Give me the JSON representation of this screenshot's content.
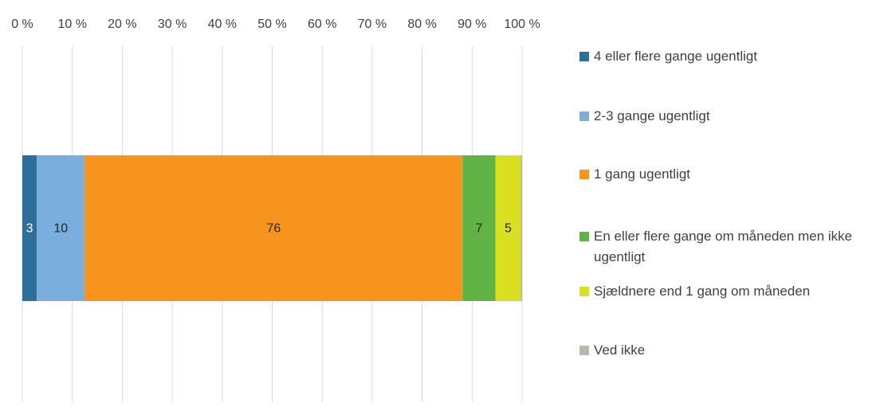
{
  "chart_data": {
    "type": "stacked-bar-horizontal",
    "categories": [
      null
    ],
    "series": [
      {
        "name": "4 eller flere gange ugentligt",
        "color": "#2e6f99",
        "values": [
          2.9
        ],
        "value_labels": [
          "3"
        ]
      },
      {
        "name": "2-3 gange ugentligt",
        "color": "#7aaedc",
        "values": [
          9.6
        ],
        "value_labels": [
          "10"
        ]
      },
      {
        "name": "1 gang ugentligt",
        "color": "#f7941d",
        "values": [
          75.6
        ],
        "value_labels": [
          "76"
        ]
      },
      {
        "name": "En eller flere gange om måneden men ikke ugentligt",
        "color": "#62b346",
        "values": [
          6.6
        ],
        "value_labels": [
          "7"
        ]
      },
      {
        "name": "Sjældnere end 1 gang om måneden",
        "color": "#d9e021",
        "values": [
          5.0
        ],
        "value_labels": [
          "5"
        ]
      },
      {
        "name": "Ved ikke",
        "color": "#b7b9a8",
        "values": [
          0.3
        ]
      }
    ],
    "xlim": [
      0,
      100
    ],
    "xticks": [
      {
        "value": 0,
        "label": "0 %"
      },
      {
        "value": 10,
        "label": "10 %"
      },
      {
        "value": 20,
        "label": "20 %"
      },
      {
        "value": 30,
        "label": "30 %"
      },
      {
        "value": 40,
        "label": "40 %"
      },
      {
        "value": 50,
        "label": "50 %"
      },
      {
        "value": 60,
        "label": "60 %"
      },
      {
        "value": 70,
        "label": "70 %"
      },
      {
        "value": 80,
        "label": "80 %"
      },
      {
        "value": 90,
        "label": "90 %"
      },
      {
        "value": 100,
        "label": "100 %"
      }
    ],
    "grid": true,
    "legend": "right"
  }
}
